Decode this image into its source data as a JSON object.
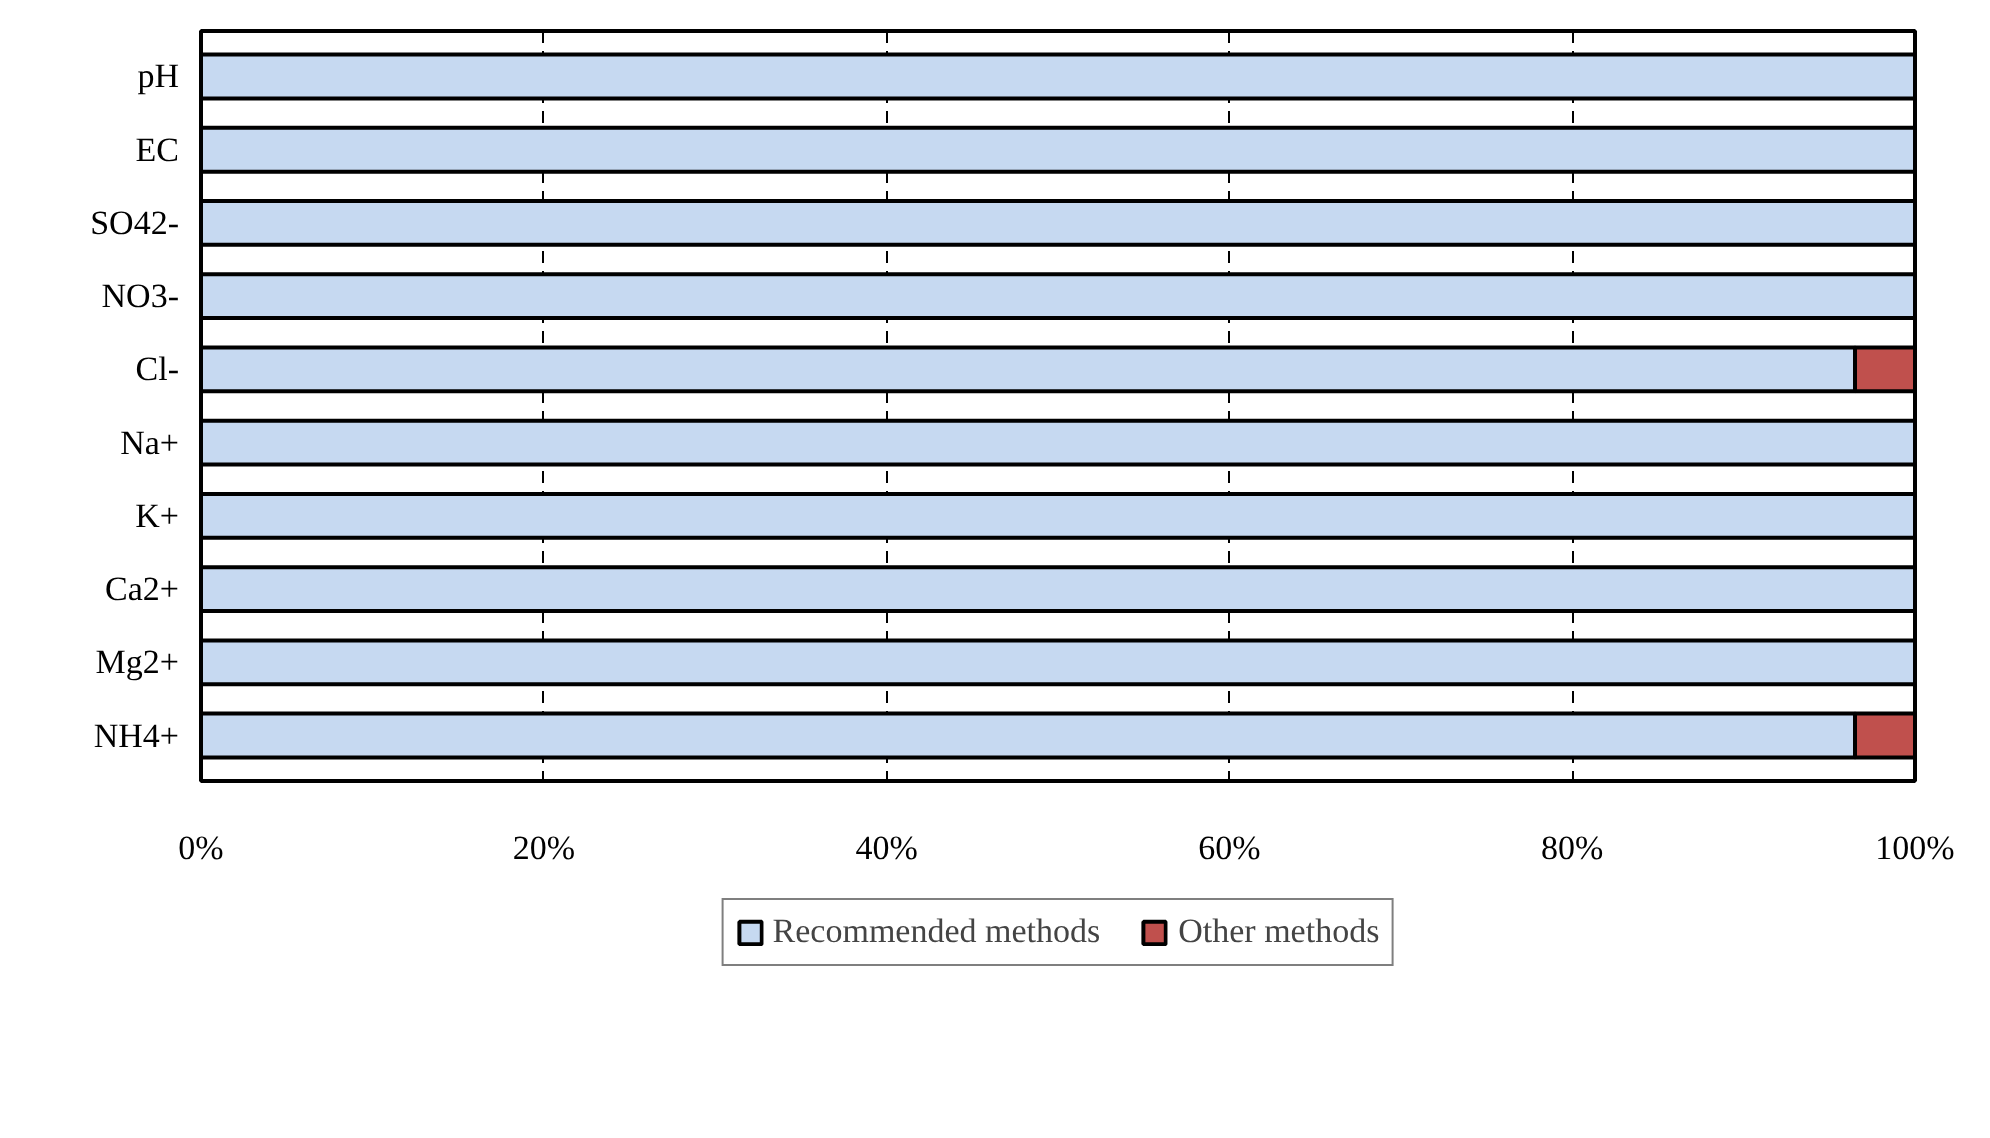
{
  "chart_data": {
    "type": "bar",
    "orientation": "horizontal",
    "stacked": true,
    "categories": [
      "pH",
      "EC",
      "SO42-",
      "NO3-",
      "Cl-",
      "Na+",
      "K+",
      "Ca2+",
      "Mg2+",
      "NH4+"
    ],
    "series": [
      {
        "name": "Recommended methods",
        "color": "#c6d9f1",
        "values": [
          100,
          100,
          100,
          100,
          96.5,
          100,
          100,
          100,
          100,
          96.5
        ]
      },
      {
        "name": "Other methods",
        "color": "#c0504d",
        "values": [
          0,
          0,
          0,
          0,
          3.5,
          0,
          0,
          0,
          0,
          3.5
        ]
      }
    ],
    "xlim": [
      0,
      100
    ],
    "xticks": [
      {
        "value": 0,
        "label": "0%"
      },
      {
        "value": 20,
        "label": "20%"
      },
      {
        "value": 40,
        "label": "40%"
      },
      {
        "value": 60,
        "label": "60%"
      },
      {
        "value": 80,
        "label": "80%"
      },
      {
        "value": 100,
        "label": "100%"
      }
    ],
    "grid": "x",
    "legend": "bottom"
  }
}
